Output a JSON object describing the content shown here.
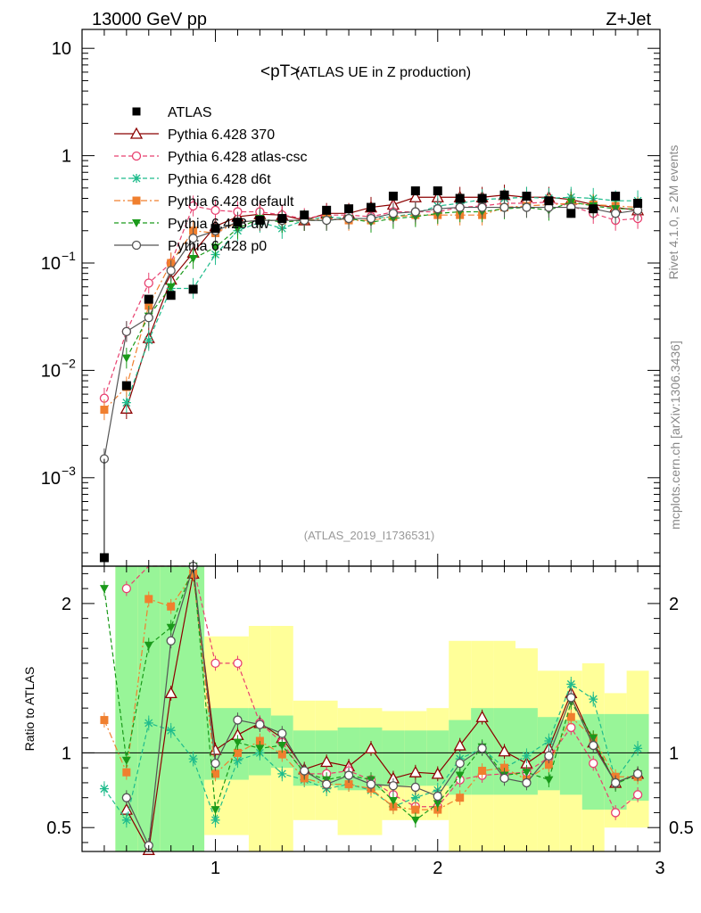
{
  "header": {
    "energy": "13000 GeV pp",
    "process": "Z+Jet"
  },
  "side": {
    "rivet": "Rivet 4.1.0, ≥ 2M events",
    "mcplots": "mcplots.cern.ch [arXiv:1306.3436]"
  },
  "chart_data": {
    "type": "line",
    "title": "<pT>",
    "subtitle": "(ATLAS UE in Z production)",
    "analysis_id": "(ATLAS_2019_I1736531)",
    "xlabel": "",
    "ylabel_ratio": "Ratio to ATLAS",
    "xlim": [
      0.4,
      3.0
    ],
    "ylim_main": [
      0.00015,
      15
    ],
    "ylim_ratio": [
      0.34,
      2.25
    ],
    "y_scale_main": "log",
    "x_ticks": [
      "1",
      "2",
      "3"
    ],
    "y_ticks_main": [
      "10",
      "1",
      "10^-1",
      "10^-2",
      "10^-3"
    ],
    "y_ticks_ratio": [
      "2",
      "1",
      "0.5"
    ],
    "x": [
      0.5,
      0.6,
      0.7,
      0.8,
      0.9,
      1.0,
      1.1,
      1.2,
      1.3,
      1.4,
      1.5,
      1.6,
      1.7,
      1.8,
      1.9,
      2.0,
      2.1,
      2.2,
      2.3,
      2.4,
      2.5,
      2.6,
      2.7,
      2.8,
      2.9
    ],
    "data": {
      "name": "ATLAS",
      "values": [
        0.00018,
        0.0072,
        0.046,
        0.05,
        0.057,
        0.21,
        0.24,
        0.25,
        0.26,
        0.28,
        0.31,
        0.32,
        0.33,
        0.42,
        0.47,
        0.47,
        0.4,
        0.4,
        0.43,
        0.42,
        0.38,
        0.29,
        0.32,
        0.42,
        0.36
      ]
    },
    "series": [
      {
        "name": "Pythia 6.428 370",
        "color": "#8b0000",
        "marker": "triangle-open",
        "dash": "solid",
        "values": [
          null,
          0.0044,
          0.02,
          0.07,
          0.125,
          0.22,
          0.27,
          0.285,
          0.28,
          0.25,
          0.29,
          0.29,
          0.33,
          0.35,
          0.41,
          0.41,
          0.41,
          0.41,
          0.43,
          0.41,
          0.41,
          0.39,
          0.35,
          0.33,
          0.31
        ],
        "ratio": [
          null,
          0.62,
          0.35,
          1.4,
          2.2,
          1.02,
          1.12,
          1.2,
          1.1,
          0.89,
          0.94,
          0.91,
          1.03,
          0.83,
          0.87,
          0.86,
          1.05,
          1.24,
          1.01,
          0.93,
          1.03,
          1.4,
          1.07,
          0.8,
          0.86
        ]
      },
      {
        "name": "Pythia 6.428 atlas-csc",
        "color": "#e8406f",
        "marker": "circle-open",
        "dash": "dashed",
        "values": [
          0.0055,
          0.023,
          0.065,
          0.1,
          0.34,
          0.31,
          0.3,
          0.3,
          0.28,
          0.26,
          0.28,
          0.28,
          0.27,
          0.3,
          0.3,
          0.3,
          0.33,
          0.34,
          0.36,
          0.36,
          0.37,
          0.34,
          0.29,
          0.25,
          0.26
        ],
        "ratio": [
          null,
          2.1,
          2.3,
          2.3,
          2.3,
          1.6,
          1.6,
          1.2,
          1.07,
          0.86,
          0.86,
          0.88,
          0.82,
          0.72,
          0.64,
          0.64,
          0.82,
          0.85,
          0.86,
          0.87,
          0.97,
          1.17,
          0.93,
          0.6,
          0.72
        ]
      },
      {
        "name": "Pythia 6.428 d6t",
        "color": "#1fbc8c",
        "marker": "star",
        "dash": "dashed",
        "values": [
          null,
          0.005,
          0.019,
          0.058,
          0.058,
          0.12,
          0.2,
          0.24,
          0.21,
          0.25,
          0.27,
          0.26,
          0.26,
          0.27,
          0.29,
          0.34,
          0.36,
          0.39,
          0.4,
          0.41,
          0.4,
          0.41,
          0.4,
          0.38,
          0.38
        ],
        "ratio": [
          0.76,
          0.55,
          1.2,
          1.15,
          0.96,
          0.55,
          0.95,
          1.0,
          0.86,
          0.82,
          0.76,
          0.79,
          0.75,
          0.64,
          0.7,
          0.75,
          0.96,
          1.03,
          0.9,
          0.98,
          1.08,
          1.46,
          1.36,
          0.82,
          1.03
        ]
      },
      {
        "name": "Pythia 6.428 default",
        "color": "#f07f2e",
        "marker": "square",
        "dash": "dashdot",
        "values": [
          0.0043,
          0.007,
          0.04,
          0.1,
          0.2,
          0.19,
          0.24,
          0.25,
          0.25,
          0.25,
          0.26,
          0.25,
          0.25,
          0.27,
          0.28,
          0.28,
          0.28,
          0.28,
          0.33,
          0.34,
          0.35,
          0.36,
          0.35,
          0.34,
          0.33
        ],
        "ratio": [
          1.22,
          0.87,
          2.03,
          1.98,
          2.2,
          0.86,
          1.0,
          1.08,
          0.99,
          0.83,
          0.79,
          0.79,
          0.76,
          0.64,
          0.62,
          0.62,
          0.7,
          0.88,
          0.9,
          0.82,
          0.92,
          1.24,
          1.1,
          0.84,
          0.84
        ]
      },
      {
        "name": "Pythia 6.428 dw",
        "color": "#1a9a1a",
        "marker": "triangle-down",
        "dash": "dashed",
        "values": [
          null,
          0.013,
          0.032,
          0.06,
          0.11,
          0.14,
          0.21,
          0.26,
          0.24,
          0.25,
          0.25,
          0.26,
          0.24,
          0.26,
          0.27,
          0.29,
          0.3,
          0.3,
          0.32,
          0.33,
          0.31,
          0.37,
          0.34,
          0.32,
          0.32
        ],
        "ratio": [
          2.1,
          0.95,
          1.72,
          1.84,
          2.25,
          0.62,
          1.07,
          1.03,
          1.05,
          0.87,
          0.82,
          0.85,
          0.82,
          0.68,
          0.55,
          0.66,
          0.85,
          1.04,
          0.85,
          0.87,
          0.82,
          1.34,
          1.1,
          0.79,
          0.86
        ]
      },
      {
        "name": "Pythia 6.428 p0",
        "color": "#555555",
        "marker": "circle-open",
        "dash": "solid",
        "values": [
          0.0015,
          0.023,
          0.031,
          0.085,
          0.17,
          0.2,
          0.24,
          0.25,
          0.25,
          0.25,
          0.25,
          0.26,
          0.26,
          0.29,
          0.3,
          0.32,
          0.33,
          0.33,
          0.33,
          0.33,
          0.33,
          0.33,
          0.32,
          0.29,
          0.31
        ],
        "ratio": [
          null,
          0.7,
          0.38,
          1.75,
          2.25,
          0.93,
          1.22,
          1.19,
          1.13,
          0.88,
          0.79,
          0.85,
          0.79,
          0.78,
          0.77,
          0.71,
          0.93,
          1.03,
          0.83,
          0.8,
          0.98,
          1.37,
          1.05,
          0.8,
          0.86
        ]
      }
    ],
    "bands": {
      "x_edges": [
        0.55,
        0.65,
        0.75,
        0.95,
        1.05,
        1.15,
        1.25,
        1.35,
        1.45,
        1.55,
        1.65,
        1.75,
        1.85,
        1.95,
        2.05,
        2.15,
        2.25,
        2.35,
        2.45,
        2.55,
        2.65,
        2.75,
        2.85,
        2.95
      ],
      "stat_lo": [
        0.34,
        0.34,
        0.34,
        0.82,
        0.82,
        0.85,
        0.9,
        0.78,
        0.78,
        0.75,
        0.75,
        0.78,
        0.78,
        0.78,
        0.72,
        0.72,
        0.72,
        0.72,
        0.75,
        0.72,
        0.62,
        0.62,
        0.68
      ],
      "stat_hi": [
        2.25,
        2.25,
        2.25,
        1.3,
        1.3,
        1.3,
        1.25,
        1.15,
        1.15,
        1.17,
        1.17,
        1.15,
        1.15,
        1.15,
        1.22,
        1.3,
        1.3,
        1.3,
        1.24,
        1.22,
        1.26,
        1.26,
        1.26
      ],
      "tot_lo": [
        0.34,
        0.34,
        0.34,
        0.45,
        0.45,
        0.34,
        0.34,
        0.55,
        0.55,
        0.45,
        0.45,
        0.55,
        0.55,
        0.55,
        0.34,
        0.34,
        0.34,
        0.34,
        0.34,
        0.34,
        0.34,
        0.5,
        0.5
      ],
      "tot_hi": [
        2.25,
        2.25,
        2.25,
        1.78,
        1.78,
        1.85,
        1.85,
        1.35,
        1.35,
        1.3,
        1.3,
        1.28,
        1.28,
        1.3,
        1.75,
        1.75,
        1.75,
        1.7,
        1.55,
        1.55,
        1.6,
        1.4,
        1.55
      ]
    }
  }
}
